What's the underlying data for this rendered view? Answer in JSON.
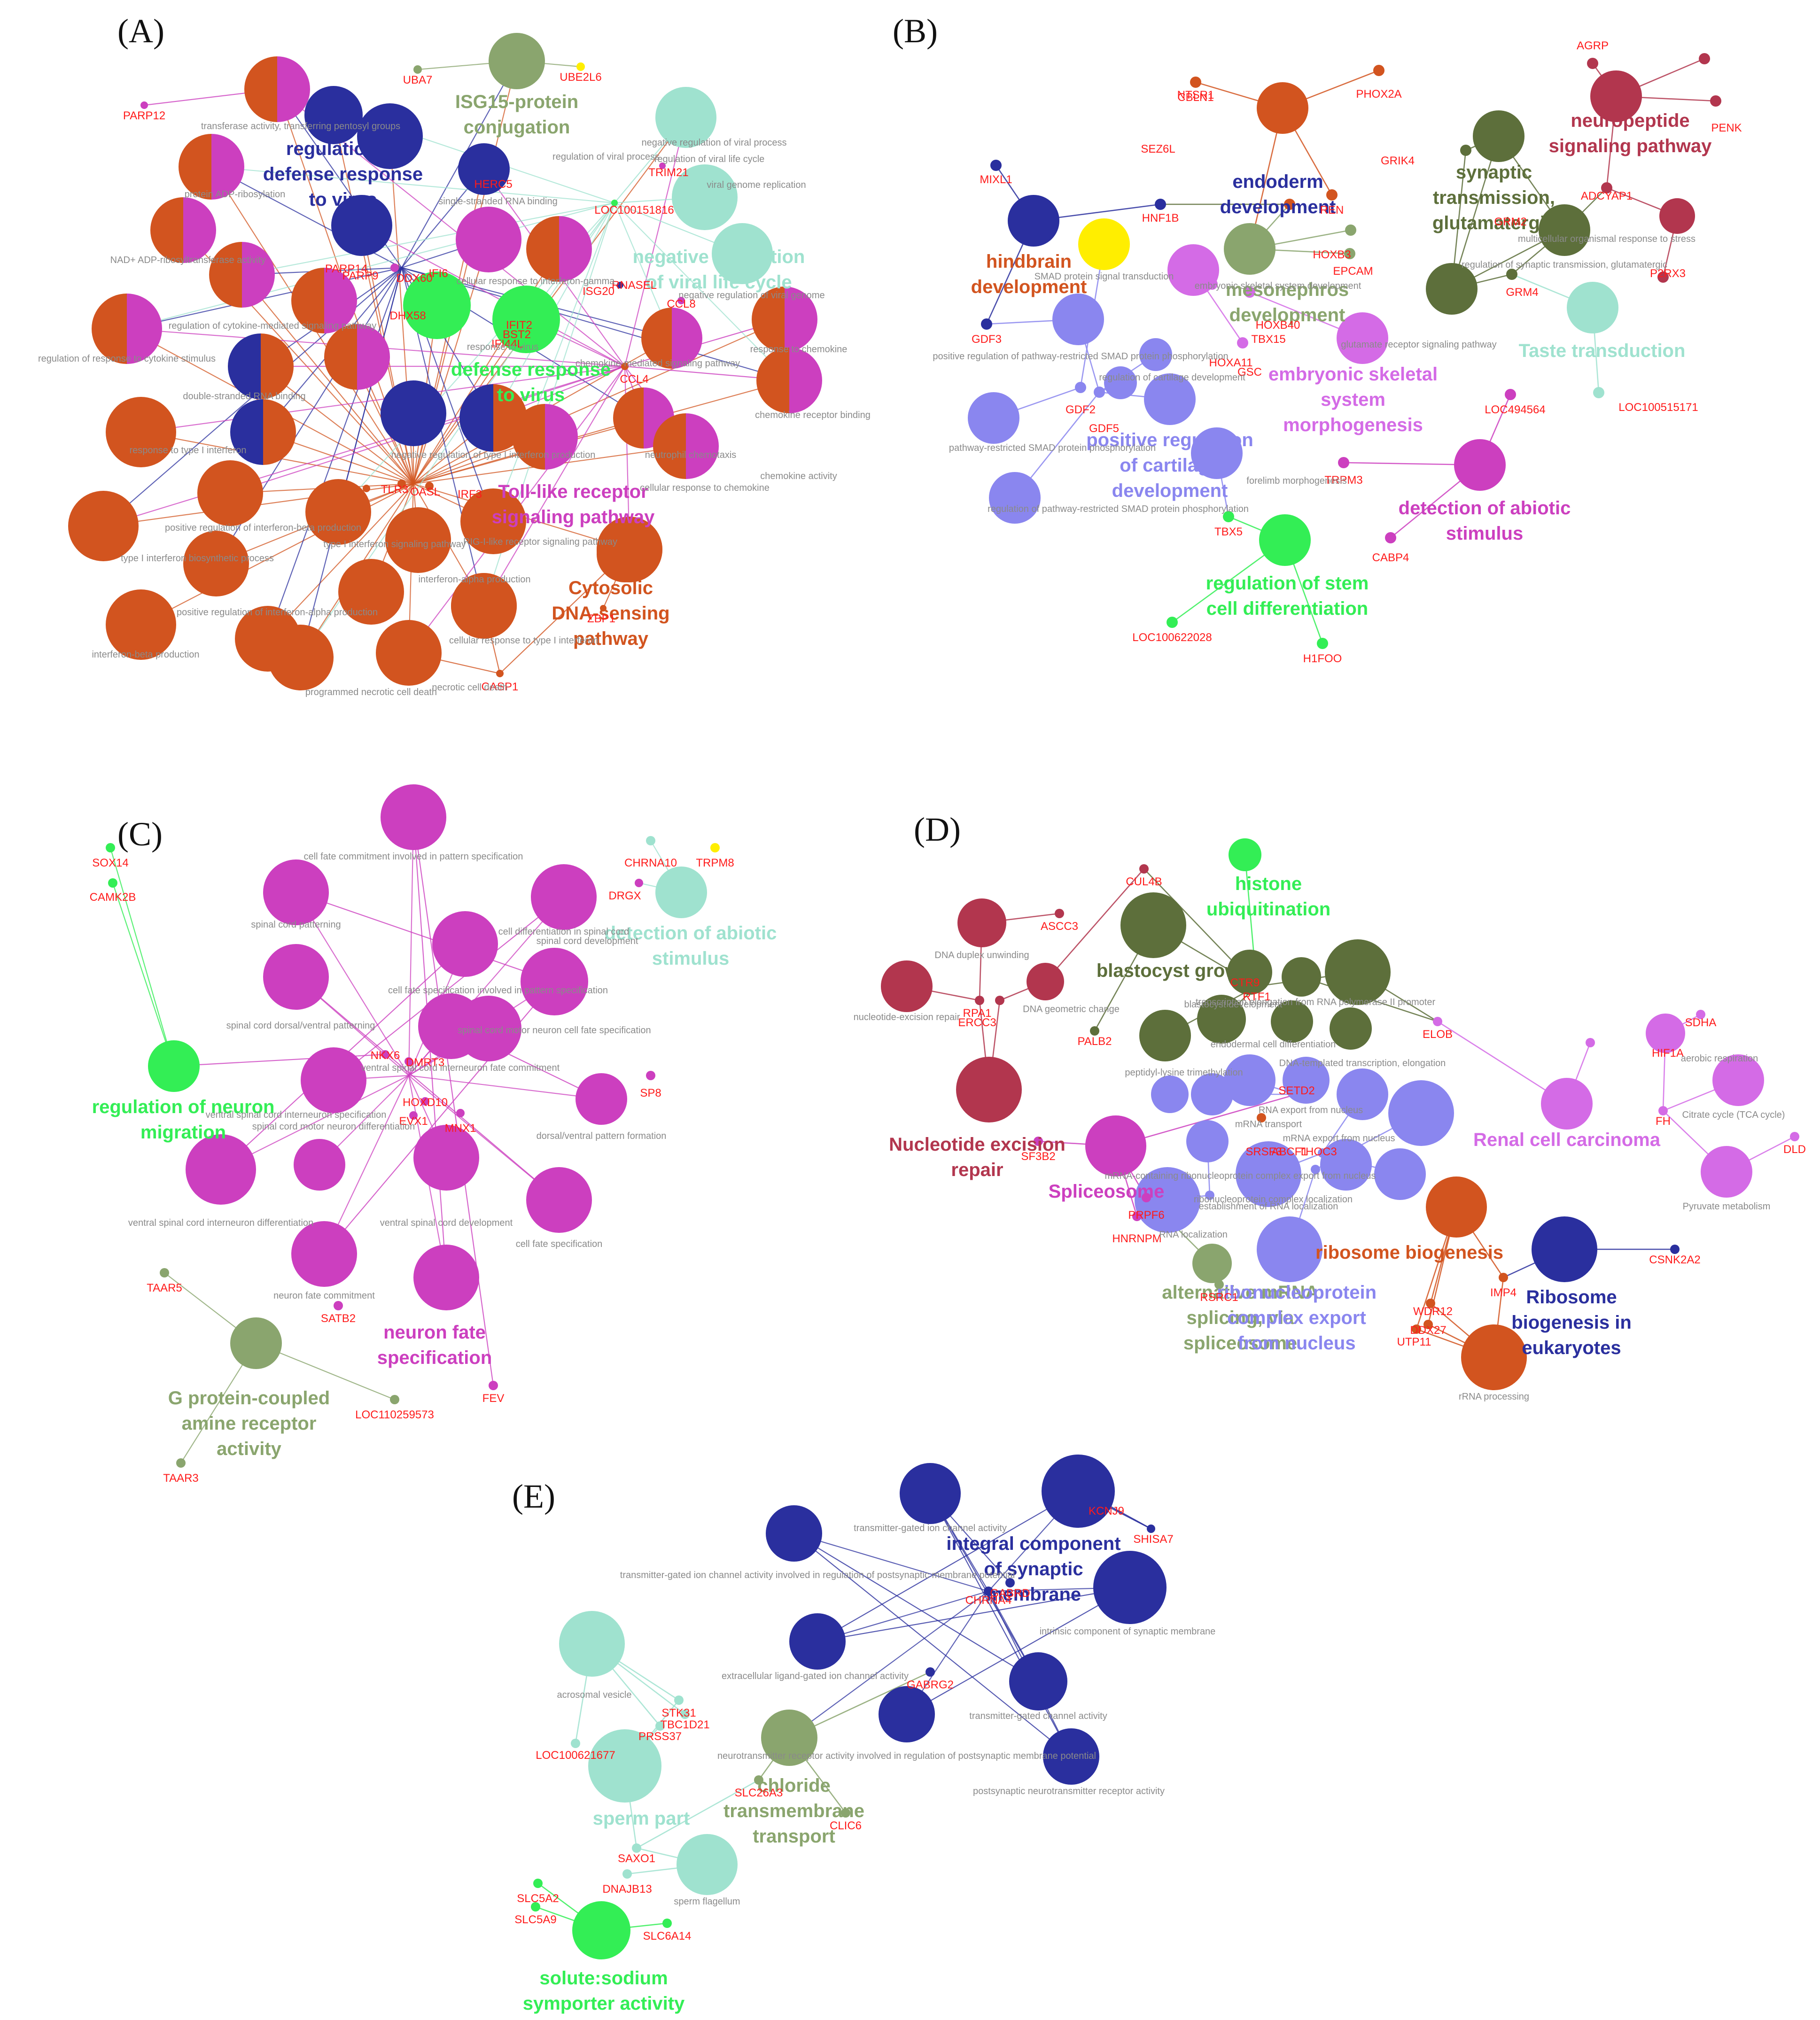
{
  "colors": {
    "orange": "#d2541f",
    "magenta": "#cc3fbf",
    "navy": "#2a2f9e",
    "sage": "#8aa56e",
    "aqua": "#9fe2cf",
    "green": "#33ee55",
    "darkolive": "#5d6f3b",
    "crimson": "#b2364e",
    "periwinkle": "#8a86ef",
    "yellow": "#ffee00",
    "violet": "#d46be6",
    "gene_red": "#ff1a1a"
  },
  "panels": [
    {
      "id": "A",
      "label": "(A)",
      "clusters": [
        {
          "text": "regulation of\ndefense response\nto virus",
          "color": "navy"
        },
        {
          "text": "ISG15-protein\nconjugation",
          "color": "sage"
        },
        {
          "text": "negative regulation\nof viral life cycle",
          "color": "aqua"
        },
        {
          "text": "defense response\nto virus",
          "color": "green"
        },
        {
          "text": "Toll-like receptor\nsignaling pathway",
          "color": "magenta"
        },
        {
          "text": "Cytosolic\nDNA-sensing\npathway",
          "color": "orange"
        }
      ],
      "genes": [
        "UBA7",
        "UBE2L6",
        "PARP12",
        "PARP14",
        "PARP9",
        "HERC5",
        "DDX60",
        "IFI6",
        "ISG20",
        "DHX58",
        "IFIT2",
        "BST2",
        "IFI44L",
        "LOC100151816",
        "TRIM21",
        "RNASEL",
        "CCL8",
        "CCL4",
        "TLR3",
        "OASL",
        "IRF3",
        "ZBP1",
        "CASP1"
      ],
      "terms": [
        "transferase activity, transferring pentosyl groups",
        "protein ADP-ribosylation",
        "NAD+ ADP-ribosyltransferase activity",
        "regulation of cytokine-mediated signaling pathway",
        "regulation of response to cytokine stimulus",
        "double-stranded RNA binding",
        "response to type I interferon",
        "positive regulation of interferon-beta production",
        "type I interferon biosynthetic process",
        "interferon-beta production",
        "positive regulation of interferon-alpha production",
        "programmed necrotic cell death",
        "necrotic cell death",
        "cellular response to type I interferon",
        "interferon-alpha production",
        "RIG-I-like receptor signaling pathway",
        "cellular response to chemokine",
        "neutrophil chemotaxis",
        "chemokine activity",
        "chemokine receptor binding",
        "response to chemokine",
        "chemokine-mediated signaling pathway",
        "negative regulation of viral genome",
        "viral genome replication",
        "regulation of viral life cycle",
        "negative regulation of viral process",
        "regulation of viral process",
        "single-stranded RNA binding",
        "response to virus",
        "cellular response to interferon-gamma",
        "negative regulation of type I interferon production",
        "type I interferon signaling pathway"
      ]
    },
    {
      "id": "B",
      "label": "(B)",
      "clusters": [
        {
          "text": "hindbrain\ndevelopment",
          "color": "orange"
        },
        {
          "text": "neuropeptide\nsignaling pathway",
          "color": "crimson"
        },
        {
          "text": "synaptic\ntransmission,\nglutamatergic",
          "color": "darkolive"
        },
        {
          "text": "endoderm\ndevelopment",
          "color": "navy"
        },
        {
          "text": "mesonephros\ndevelopment",
          "color": "sage"
        },
        {
          "text": "Taste transduction",
          "color": "aqua"
        },
        {
          "text": "embryonic skeletal\nsystem\nmorphogenesis",
          "color": "violet"
        },
        {
          "text": "positive regulation\nof cartilage\ndevelopment",
          "color": "periwinkle"
        },
        {
          "text": "detection of abiotic\nstimulus",
          "color": "magenta"
        },
        {
          "text": "regulation of stem\ncell differentiation",
          "color": "green"
        }
      ],
      "genes": [
        "NTSR1",
        "AGRP",
        "PENK",
        "CBLN1",
        "PHOX2A",
        "SEZ6L",
        "REN",
        "MIXL1",
        "HNF1B",
        "HOXB3",
        "EPCAM",
        "GRIK4",
        "GRM2",
        "ADCYAP1",
        "GRM4",
        "P2RX3",
        "GDF3",
        "HOXA11",
        "GSC",
        "TBX15",
        "HOXB40",
        "GDF2",
        "GDF5",
        "LOC494564",
        "TRPM3",
        "CABP4",
        "TBX5",
        "LOC100515171",
        "LOC100622028",
        "H1FOO"
      ],
      "terms": [
        "SMAD protein signal transduction",
        "embryonic skeletal system development",
        "glutamate receptor signaling pathway",
        "multicellular organismal response to stress",
        "regulation of synaptic transmission, glutamatergic",
        "positive regulation of pathway-restricted SMAD protein phosphorylation",
        "regulation of cartilage development",
        "forelimb morphogenesis",
        "pathway-restricted SMAD protein phosphorylation",
        "regulation of pathway-restricted SMAD protein phosphorylation"
      ]
    },
    {
      "id": "C",
      "label": "(C)",
      "clusters": [
        {
          "text": "detection of abiotic\nstimulus",
          "color": "aqua"
        },
        {
          "text": "regulation of neuron\nmigration",
          "color": "green"
        },
        {
          "text": "neuron fate\nspecification",
          "color": "magenta"
        },
        {
          "text": "G protein-coupled\namine receptor\nactivity",
          "color": "sage"
        }
      ],
      "genes": [
        "CHRNA10",
        "TRPM8",
        "DRGX",
        "SOX14",
        "CAMK2B",
        "NKX6",
        "DMRT3",
        "HOXD10",
        "EVX1",
        "MNX1",
        "SP8",
        "SATB2",
        "FEV",
        "TAAR5",
        "TAAR3",
        "LOC110259573"
      ],
      "terms": [
        "cell fate commitment involved in pattern specification",
        "spinal cord patterning",
        "cell differentiation in spinal cord",
        "spinal cord development",
        "spinal cord dorsal/ventral patterning",
        "cell fate specification involved in pattern specification",
        "spinal cord motor neuron cell fate specification",
        "ventral spinal cord interneuron fate commitment",
        "ventral spinal cord interneuron specification",
        "spinal cord motor neuron differentiation",
        "dorsal/ventral pattern formation",
        "ventral spinal cord interneuron differentiation",
        "ventral spinal cord development",
        "cell fate specification",
        "neuron fate commitment"
      ]
    },
    {
      "id": "D",
      "label": "(D)",
      "clusters": [
        {
          "text": "histone\nubiquitination",
          "color": "green"
        },
        {
          "text": "blastocyst growth",
          "color": "darkolive"
        },
        {
          "text": "Nucleotide excision\nrepair",
          "color": "crimson"
        },
        {
          "text": "Spliceosome",
          "color": "magenta"
        },
        {
          "text": "Renal cell carcinoma",
          "color": "violet"
        },
        {
          "text": "ribosome biogenesis",
          "color": "orange"
        },
        {
          "text": "Ribosome\nbiogenesis in\neukaryotes",
          "color": "navy"
        },
        {
          "text": "alternative mRNA\nsplicing, via\nspliceosome",
          "color": "sage"
        },
        {
          "text": "ribonucleoprotein\ncomplex export\nfrom nucleus",
          "color": "periwinkle"
        }
      ],
      "genes": [
        "CUL4B",
        "ASCC3",
        "RPA1",
        "ERCC3",
        "CTR9",
        "RTF1",
        "ELOB",
        "PALB2",
        "SETD2",
        "SRSF3",
        "ABCF1",
        "THOC3",
        "SF3B2",
        "PRPF6",
        "HNRNPM",
        "HIF1A",
        "SDHA",
        "FH",
        "DLD",
        "IMP4",
        "CSNK2A2",
        "WDR12",
        "DDX27",
        "UTP11",
        "RSRC1"
      ],
      "terms": [
        "DNA duplex unwinding",
        "DNA geometric change",
        "nucleotide-excision repair",
        "blastocyst development",
        "transcription elongation from RNA polymerase II promoter",
        "endodermal cell differentiation",
        "peptidyl-lysine trimethylation",
        "DNA-templated transcription, elongation",
        "RNA export from nucleus",
        "mRNA transport",
        "mRNA export from nucleus",
        "mRNA-containing ribonucleoprotein complex export from nucleus",
        "ribonucleoprotein complex localization",
        "establishment of RNA localization",
        "RNA localization",
        "aerobic respiration",
        "Citrate cycle (TCA cycle)",
        "Pyruvate metabolism",
        "rRNA processing"
      ]
    },
    {
      "id": "E",
      "label": "(E)",
      "clusters": [
        {
          "text": "integral component\nof synaptic\nmembrane",
          "color": "navy"
        },
        {
          "text": "chloride\ntransmembrane\ntransport",
          "color": "sage"
        },
        {
          "text": "sperm part",
          "color": "aqua"
        },
        {
          "text": "solute:sodium\nsymporter activity",
          "color": "green"
        }
      ],
      "genes": [
        "KCNJ9",
        "SHISA7",
        "GABRD",
        "CHRNA4",
        "GABRG2",
        "STK31",
        "TBC1D21",
        "PRSS37",
        "LOC100621677",
        "SLC26A3",
        "CLIC6",
        "SAXO1",
        "DNAJB13",
        "SLC5A2",
        "SLC5A9",
        "SLC6A14"
      ],
      "terms": [
        "transmitter-gated ion channel activity",
        "transmitter-gated ion channel activity involved in regulation of postsynaptic membrane potential",
        "intrinsic component of synaptic membrane",
        "extracellular ligand-gated ion channel activity",
        "transmitter-gated channel activity",
        "neurotransmitter receptor activity involved in regulation of postsynaptic membrane potential",
        "postsynaptic neurotransmitter receptor activity",
        "acrosomal vesicle",
        "sperm flagellum"
      ]
    }
  ]
}
